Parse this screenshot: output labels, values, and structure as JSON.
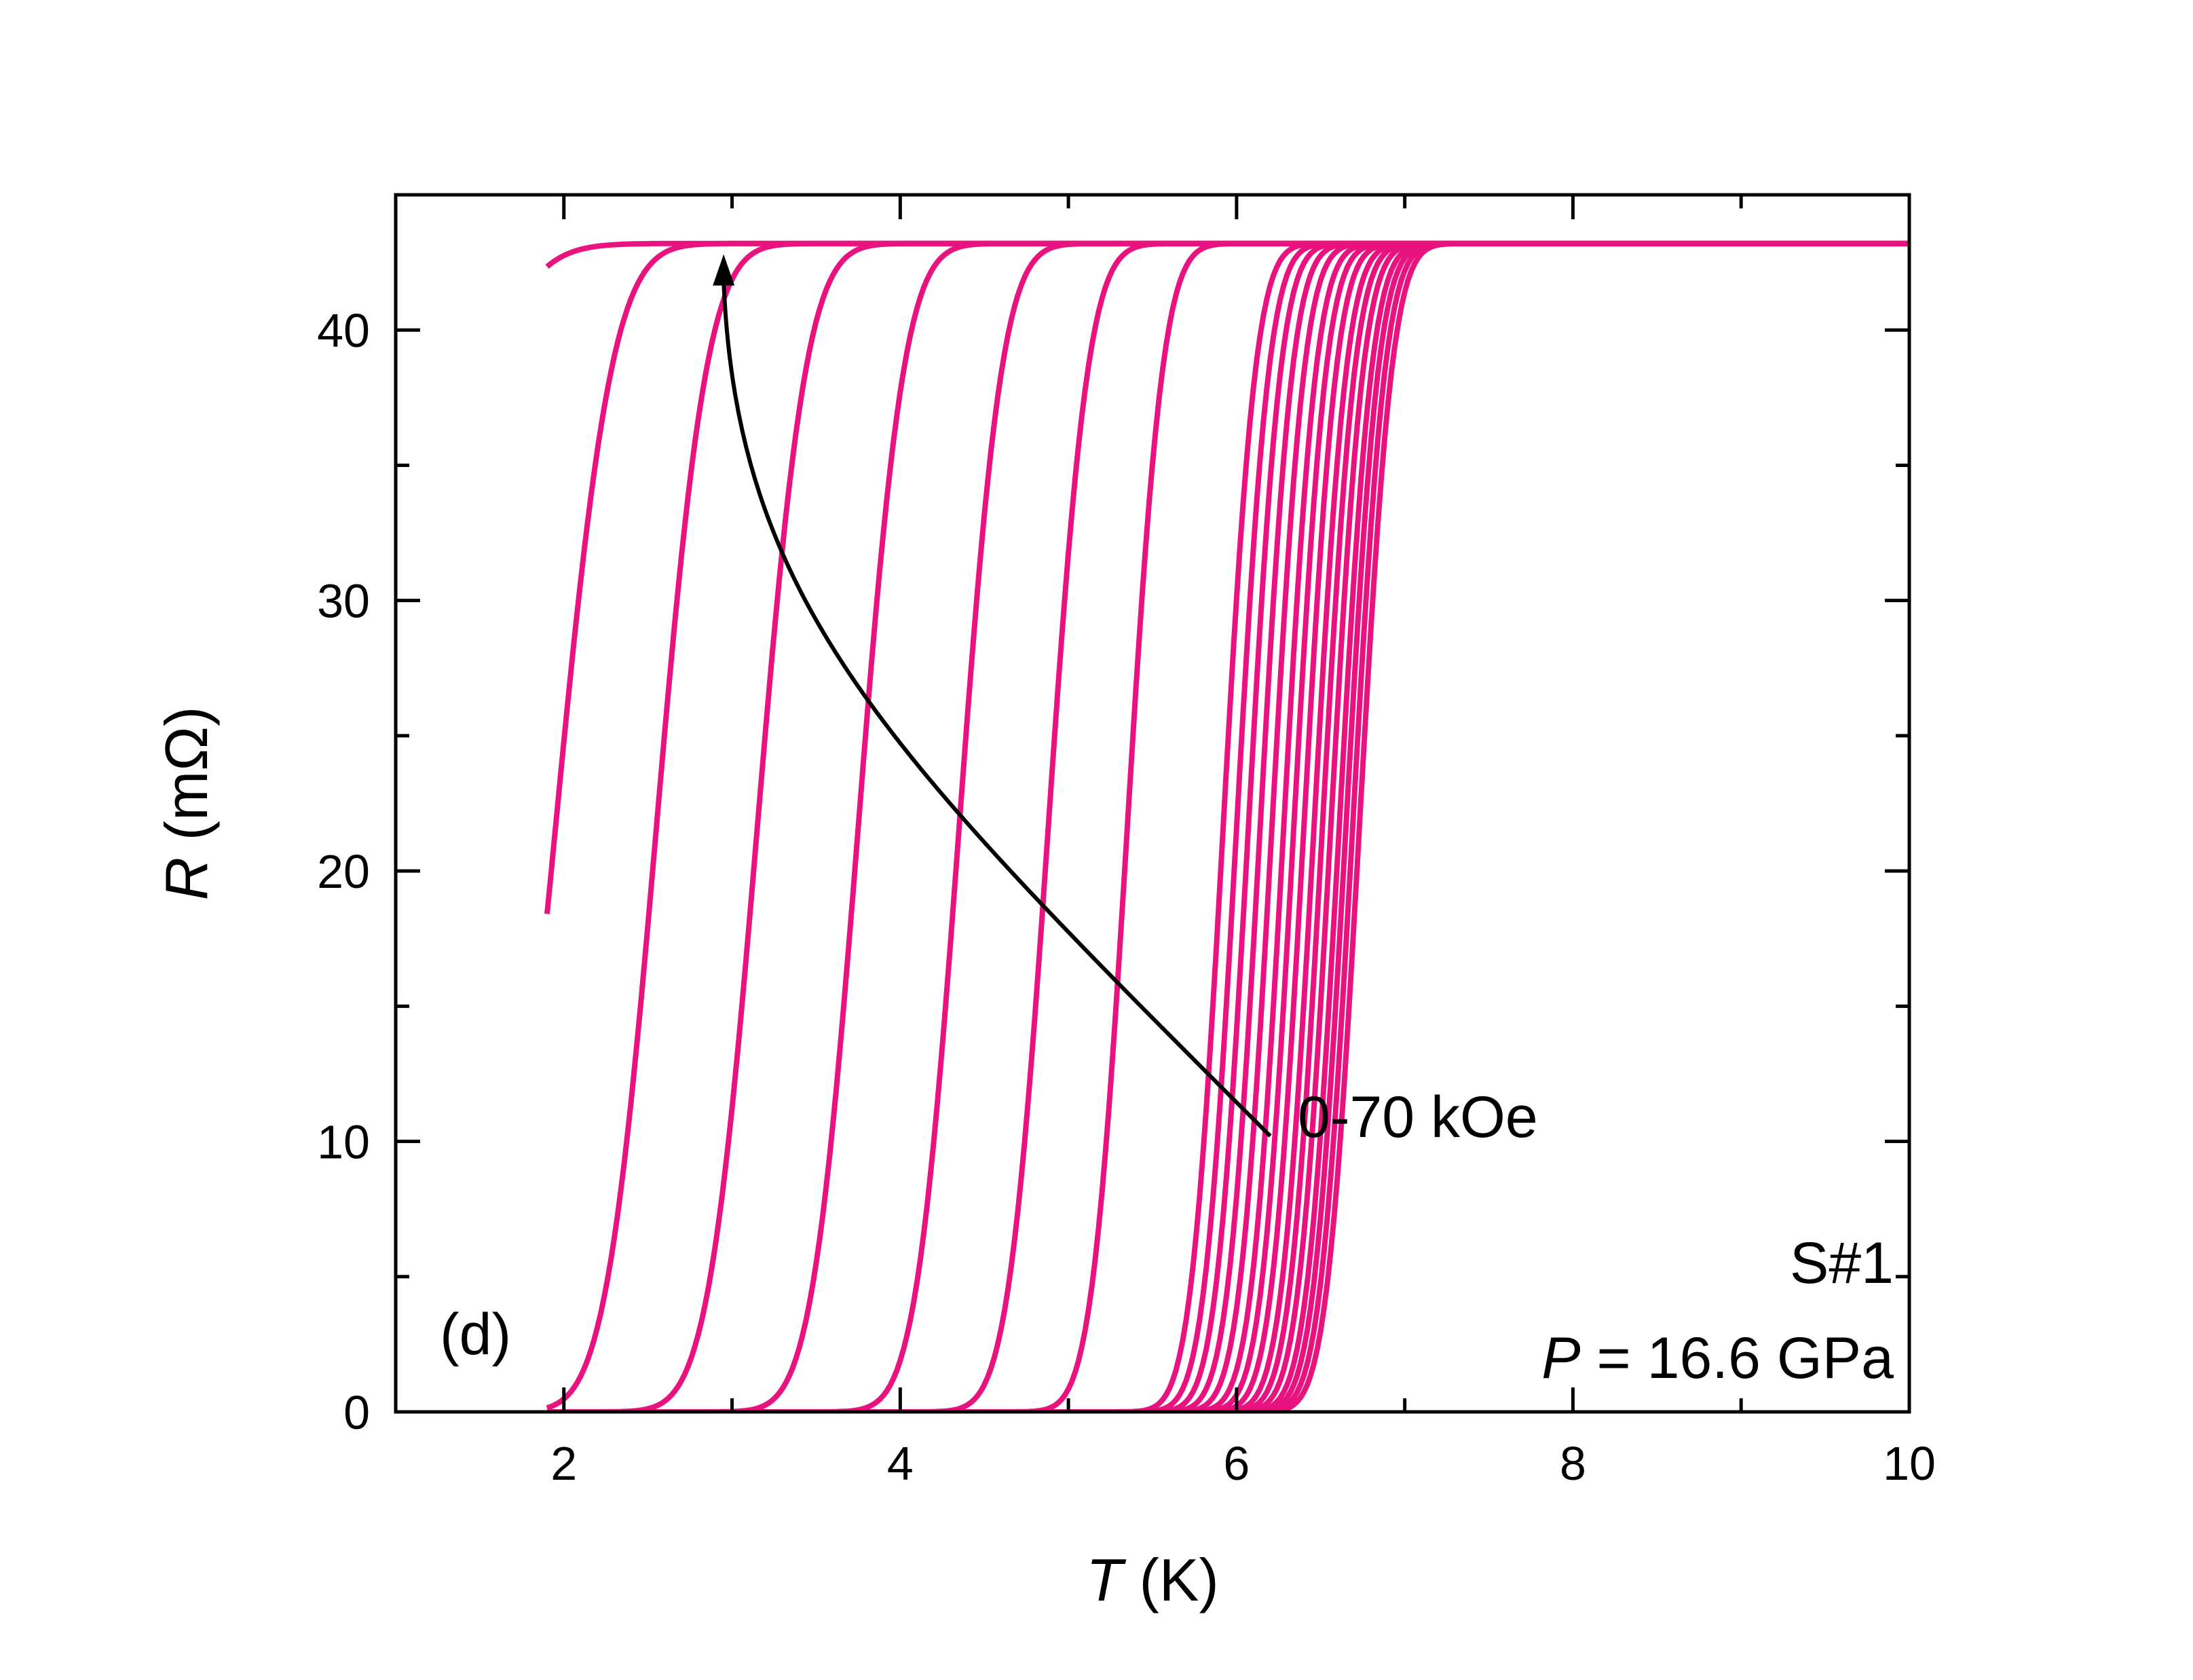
{
  "chart_data": {
    "type": "line",
    "xlabel_symbol": "T",
    "xlabel_unit": " (K)",
    "ylabel_symbol": "R",
    "ylabel_unit": " (mΩ)",
    "xlim": [
      1,
      10
    ],
    "ylim": [
      0,
      45
    ],
    "x_ticks": [
      2,
      4,
      6,
      8,
      10
    ],
    "x_tick_labels": [
      "2",
      "4",
      "6",
      "8",
      "10"
    ],
    "y_ticks": [
      0,
      10,
      20,
      30,
      40
    ],
    "y_tick_labels": [
      "0",
      "10",
      "20",
      "30",
      "40"
    ],
    "grid": false,
    "line_color": "#e8137f",
    "arrow_color": "#000000",
    "normal_state_resistance": 43.2,
    "x_data_range": [
      1.9,
      10
    ],
    "annotations": {
      "panel_label": "(d)",
      "field_range": "0-70 kOe",
      "sample": "S#1",
      "pressure_symbol": "P",
      "pressure_value": " = 16.6 GPa"
    },
    "field_arrow": {
      "from": [
        6.2,
        10.2
      ],
      "to": [
        2.95,
        42.8
      ]
    },
    "series": [
      {
        "midpoint_T": 1.1,
        "width_K": 0.55
      },
      {
        "midpoint_T": 1.95,
        "width_K": 0.38
      },
      {
        "midpoint_T": 2.55,
        "width_K": 0.34
      },
      {
        "midpoint_T": 3.15,
        "width_K": 0.33
      },
      {
        "midpoint_T": 3.75,
        "width_K": 0.31
      },
      {
        "midpoint_T": 4.35,
        "width_K": 0.29
      },
      {
        "midpoint_T": 4.88,
        "width_K": 0.27
      },
      {
        "midpoint_T": 5.35,
        "width_K": 0.24
      },
      {
        "midpoint_T": 5.92,
        "width_K": 0.22
      },
      {
        "midpoint_T": 6.0,
        "width_K": 0.22
      },
      {
        "midpoint_T": 6.07,
        "width_K": 0.22
      },
      {
        "midpoint_T": 6.14,
        "width_K": 0.22
      },
      {
        "midpoint_T": 6.21,
        "width_K": 0.22
      },
      {
        "midpoint_T": 6.28,
        "width_K": 0.22
      },
      {
        "midpoint_T": 6.34,
        "width_K": 0.22
      },
      {
        "midpoint_T": 6.4,
        "width_K": 0.22
      },
      {
        "midpoint_T": 6.46,
        "width_K": 0.22
      },
      {
        "midpoint_T": 6.51,
        "width_K": 0.22
      },
      {
        "midpoint_T": 6.56,
        "width_K": 0.22
      },
      {
        "midpoint_T": 6.61,
        "width_K": 0.22
      },
      {
        "midpoint_T": 6.65,
        "width_K": 0.22
      },
      {
        "midpoint_T": 6.69,
        "width_K": 0.22
      },
      {
        "midpoint_T": 6.73,
        "width_K": 0.22
      }
    ]
  }
}
